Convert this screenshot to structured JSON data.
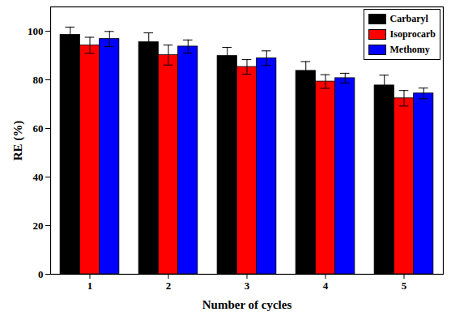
{
  "chart_data": {
    "type": "bar",
    "x_label": "Number of cycles",
    "y_label": "RE (%)",
    "categories": [
      "1",
      "2",
      "3",
      "4",
      "5"
    ],
    "series": [
      {
        "name": "Carbaryl",
        "color": "#000000",
        "values": [
          98.5,
          95.5,
          89.8,
          83.7,
          77.7
        ],
        "errors": [
          3.2,
          3.8,
          3.5,
          3.8,
          4.2
        ]
      },
      {
        "name": "Isoprocarb",
        "color": "#ff0000",
        "values": [
          94.2,
          90.2,
          85.3,
          79.3,
          72.4
        ],
        "errors": [
          3.3,
          4.1,
          3.0,
          2.8,
          3.2
        ]
      },
      {
        "name": "Methomy",
        "color": "#0000ff",
        "values": [
          96.8,
          93.7,
          88.9,
          80.7,
          74.4
        ],
        "errors": [
          3.1,
          2.7,
          3.0,
          2.0,
          2.2
        ]
      }
    ],
    "ylim": [
      0,
      110
    ],
    "yticks": [
      0,
      20,
      40,
      60,
      80,
      100
    ],
    "legend": "upper right"
  }
}
